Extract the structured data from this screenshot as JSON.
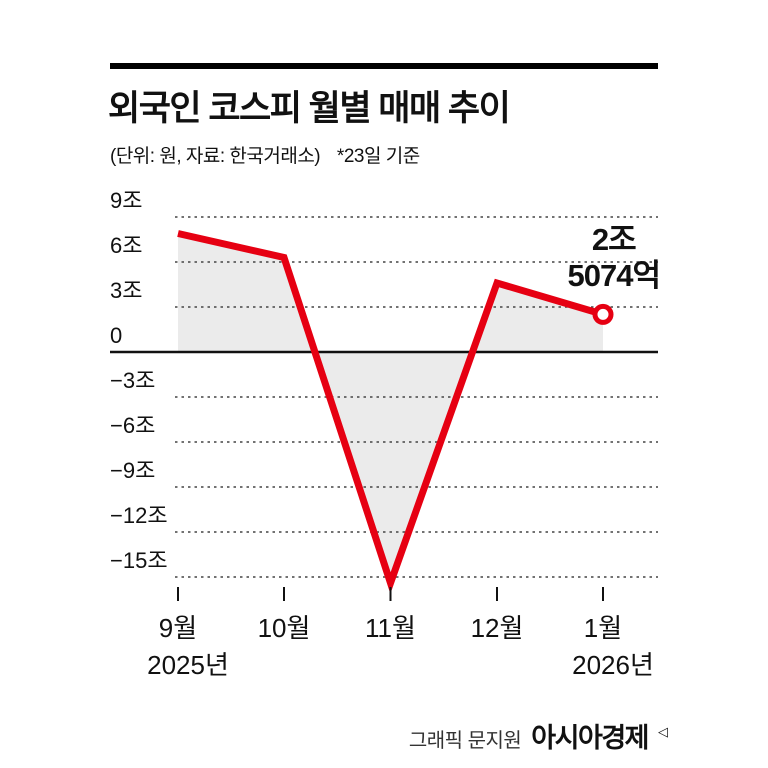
{
  "header": {
    "title": "외국인 코스피 월별 매매 추이",
    "subtitle_unit": "(단위: 원, 자료: 한국거래소)",
    "subtitle_note": "*23일 기준"
  },
  "annotation": {
    "line1": "2조",
    "line2": "5074억"
  },
  "credit": {
    "byline": "그래픽 문지원",
    "brand": "아시아경제",
    "logo_mark": "◁"
  },
  "colors": {
    "line": "#e60012",
    "area_fill": "#ebebeb",
    "grid": "#444444",
    "zero_line": "#111111",
    "text": "#111111",
    "tick": "#111111"
  },
  "chart_data": {
    "type": "line",
    "title": "외국인 코스피 월별 매매 추이",
    "unit": "조 원",
    "categories": [
      "9월",
      "10월",
      "11월",
      "12월",
      "1월"
    ],
    "category_years": [
      {
        "index": 0,
        "label": "2025년"
      },
      {
        "index": 4,
        "label": "2026년"
      }
    ],
    "values": [
      7.9,
      6.3,
      -15.4,
      4.6,
      2.5074
    ],
    "value_labels": [
      null,
      null,
      null,
      null,
      "2조 5074억"
    ],
    "yticks": [
      9,
      6,
      3,
      0,
      -3,
      -6,
      -9,
      -12,
      -15
    ],
    "ytick_labels": [
      "9조",
      "6조",
      "3조",
      "0",
      "−3조",
      "−6조",
      "−9조",
      "−12조",
      "−15조"
    ],
    "ylim": [
      -16.5,
      9.8
    ],
    "grid": "dotted-horizontal",
    "zero_axis": "solid",
    "area_fill": true,
    "last_point_marker": "open-circle",
    "legend": "none"
  }
}
